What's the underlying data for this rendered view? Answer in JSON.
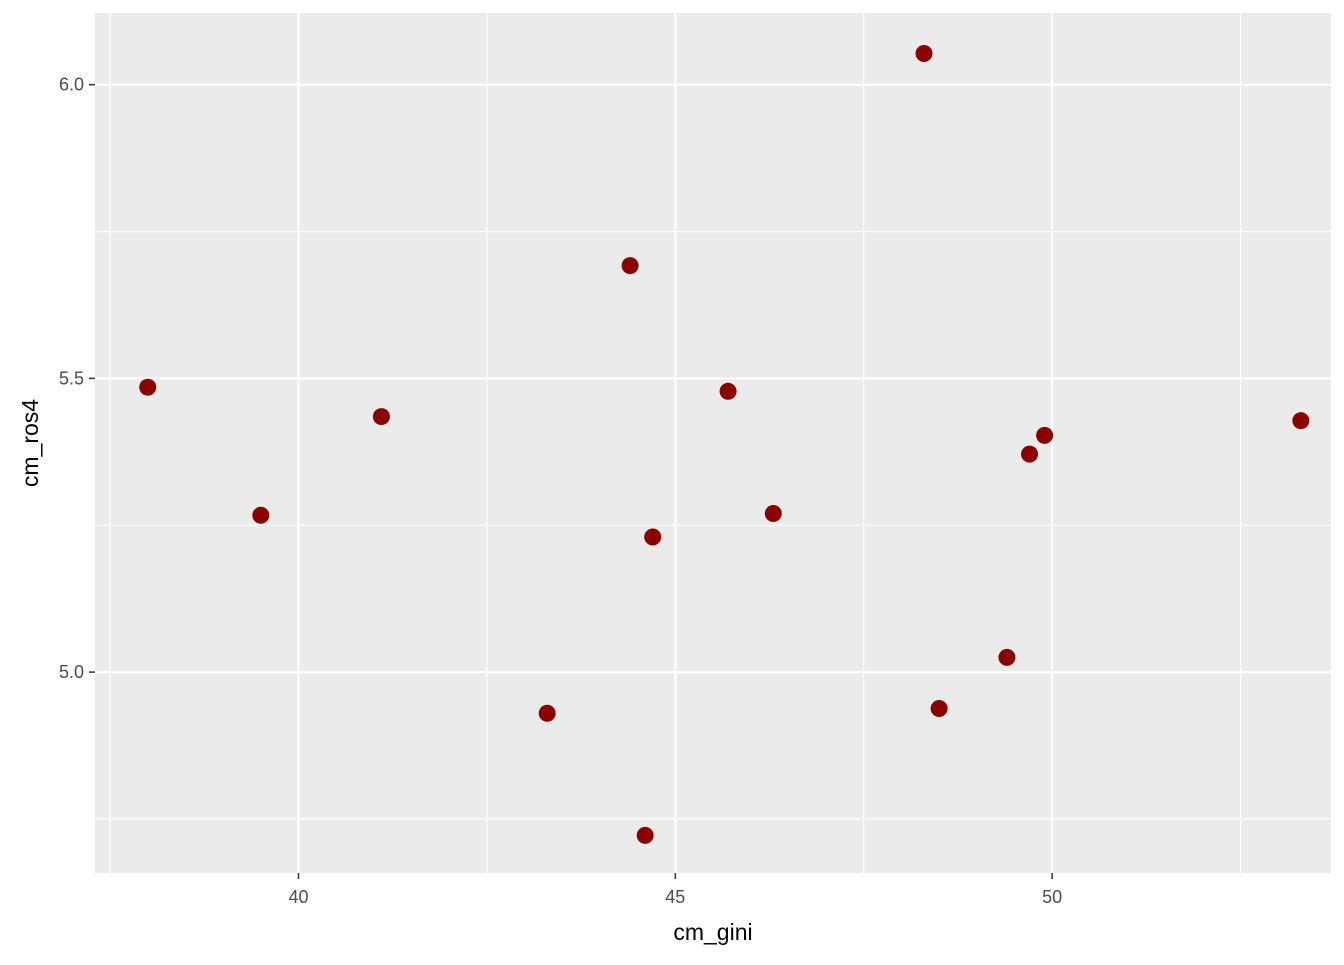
{
  "chart_data": {
    "type": "scatter",
    "xlabel": "cm_gini",
    "ylabel": "cm_ros4",
    "xlim": [
      37.3,
      53.7
    ],
    "ylim": [
      4.658,
      6.122
    ],
    "x_ticks": [
      40,
      45,
      50
    ],
    "x_tick_labels": [
      "40",
      "45",
      "50"
    ],
    "y_ticks": [
      5.0,
      5.5,
      6.0
    ],
    "y_tick_labels": [
      "5.0",
      "5.5",
      "6.0"
    ],
    "grid": true,
    "legend": "none",
    "colors": {
      "panel": "#ebebeb",
      "grid": "#ffffff",
      "point": "#8b0000",
      "tick_text": "#4d4d4d",
      "tick_mark": "#333333"
    },
    "points": [
      {
        "x": 38.0,
        "y": 5.485
      },
      {
        "x": 39.5,
        "y": 5.267
      },
      {
        "x": 41.1,
        "y": 5.435
      },
      {
        "x": 43.3,
        "y": 4.93
      },
      {
        "x": 44.4,
        "y": 5.692
      },
      {
        "x": 44.6,
        "y": 4.722
      },
      {
        "x": 44.7,
        "y": 5.23
      },
      {
        "x": 45.7,
        "y": 5.478
      },
      {
        "x": 46.3,
        "y": 5.27
      },
      {
        "x": 48.3,
        "y": 6.053
      },
      {
        "x": 48.5,
        "y": 4.938
      },
      {
        "x": 49.4,
        "y": 5.025
      },
      {
        "x": 49.7,
        "y": 5.371
      },
      {
        "x": 49.9,
        "y": 5.403
      },
      {
        "x": 53.3,
        "y": 5.428
      }
    ]
  }
}
